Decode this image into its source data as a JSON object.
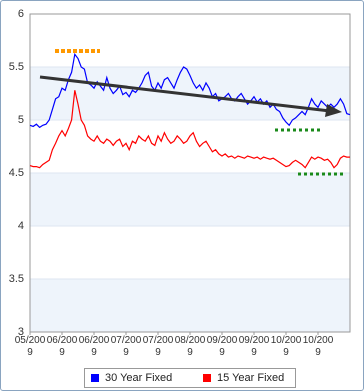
{
  "chart_data": {
    "type": "line",
    "categories": [
      "05/2009",
      null,
      null,
      null,
      null,
      null,
      null,
      null,
      null,
      null,
      "06/2009",
      null,
      null,
      null,
      null,
      null,
      null,
      null,
      null,
      null,
      "06/2009",
      null,
      null,
      null,
      null,
      null,
      null,
      null,
      null,
      null,
      "07/2009",
      null,
      null,
      null,
      null,
      null,
      null,
      null,
      null,
      null,
      "07/2009",
      null,
      null,
      null,
      null,
      null,
      null,
      null,
      null,
      null,
      "08/2009",
      null,
      null,
      null,
      null,
      null,
      null,
      null,
      null,
      null,
      "09/2009",
      null,
      null,
      null,
      null,
      null,
      null,
      null,
      null,
      null,
      "09/2009",
      null,
      null,
      null,
      null,
      null,
      null,
      null,
      null,
      null,
      "10/2009",
      null,
      null,
      null,
      null,
      null,
      null,
      null,
      null,
      null,
      "10/2009",
      null,
      null,
      null,
      null,
      null,
      null,
      null,
      null,
      null,
      null
    ],
    "series": [
      {
        "name": "30 Year Fixed",
        "color": "#0000ff",
        "values": [
          4.95,
          4.94,
          4.96,
          4.93,
          4.95,
          4.96,
          5.0,
          5.1,
          5.2,
          5.22,
          5.3,
          5.28,
          5.38,
          5.45,
          5.62,
          5.58,
          5.5,
          5.48,
          5.35,
          5.33,
          5.3,
          5.36,
          5.32,
          5.28,
          5.4,
          5.3,
          5.25,
          5.28,
          5.32,
          5.24,
          5.26,
          5.22,
          5.28,
          5.26,
          5.3,
          5.35,
          5.42,
          5.45,
          5.32,
          5.28,
          5.35,
          5.3,
          5.38,
          5.4,
          5.35,
          5.3,
          5.38,
          5.45,
          5.5,
          5.48,
          5.42,
          5.35,
          5.3,
          5.33,
          5.28,
          5.35,
          5.3,
          5.22,
          5.25,
          5.18,
          5.2,
          5.22,
          5.25,
          5.2,
          5.18,
          5.22,
          5.25,
          5.2,
          5.15,
          5.18,
          5.22,
          5.17,
          5.2,
          5.15,
          5.18,
          5.12,
          5.15,
          5.1,
          5.08,
          5.02,
          4.98,
          4.95,
          5.0,
          5.02,
          5.05,
          5.08,
          5.05,
          5.12,
          5.2,
          5.15,
          5.12,
          5.18,
          5.15,
          5.12,
          5.15,
          5.12,
          5.15,
          5.2,
          5.15,
          5.06,
          5.05
        ]
      },
      {
        "name": "15 Year Fixed",
        "color": "#ff0000",
        "values": [
          4.57,
          4.56,
          4.56,
          4.55,
          4.58,
          4.6,
          4.62,
          4.72,
          4.78,
          4.85,
          4.9,
          4.85,
          4.92,
          5.0,
          5.28,
          5.15,
          5.0,
          4.95,
          4.85,
          4.82,
          4.8,
          4.85,
          4.8,
          4.78,
          4.82,
          4.8,
          4.76,
          4.8,
          4.82,
          4.75,
          4.78,
          4.72,
          4.8,
          4.78,
          4.85,
          4.82,
          4.8,
          4.85,
          4.78,
          4.76,
          4.85,
          4.8,
          4.88,
          4.82,
          4.78,
          4.8,
          4.85,
          4.82,
          4.78,
          4.8,
          4.85,
          4.88,
          4.8,
          4.75,
          4.78,
          4.8,
          4.75,
          4.7,
          4.72,
          4.68,
          4.66,
          4.68,
          4.65,
          4.66,
          4.64,
          4.66,
          4.65,
          4.64,
          4.66,
          4.65,
          4.64,
          4.65,
          4.63,
          4.65,
          4.64,
          4.63,
          4.64,
          4.62,
          4.6,
          4.58,
          4.56,
          4.57,
          4.6,
          4.62,
          4.6,
          4.58,
          4.55,
          4.6,
          4.65,
          4.63,
          4.65,
          4.64,
          4.62,
          4.63,
          4.6,
          4.55,
          4.58,
          4.64,
          4.66,
          4.65,
          4.65
        ]
      }
    ],
    "ylim": [
      3,
      6
    ],
    "yticks": [
      3,
      3.5,
      4,
      4.5,
      5,
      5.5,
      6
    ],
    "grid": true
  }
}
